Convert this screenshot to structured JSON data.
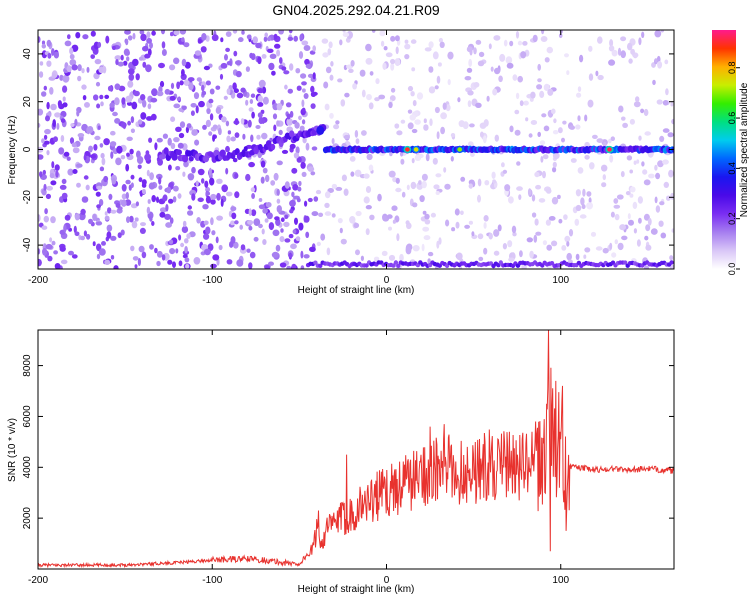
{
  "title": "GN04.2025.292.04.21.R09",
  "colors": {
    "snr_line": "#e8322e",
    "axis": "#000000",
    "colormap": [
      "#ffffff",
      "#d9c6f7",
      "#a67ef0",
      "#7a2ef2",
      "#4a0ae8",
      "#1a16f0",
      "#0066ff",
      "#00ccee",
      "#00e080",
      "#33ee00",
      "#c8ee00",
      "#ffb000",
      "#ff3300",
      "#ff1a8c"
    ]
  },
  "chart_data": [
    {
      "type": "heatmap",
      "name": "spectrogram",
      "xlabel": "Height of straight line (km)",
      "ylabel": "Frequency (Hz)",
      "xlim": [
        -200,
        165
      ],
      "ylim": [
        -50,
        50
      ],
      "xticks": [
        -200,
        -100,
        0,
        100
      ],
      "xtick_labels": [
        "-200",
        "-100",
        "0",
        "100"
      ],
      "yticks": [
        -40,
        -20,
        0,
        20,
        40
      ],
      "ytick_labels": [
        "-40",
        "-20",
        "0",
        "20",
        "40"
      ],
      "colorbar": {
        "label": "Normalized spectral amplitude",
        "range": [
          0,
          0.95
        ],
        "ticks": [
          0.0,
          0.2,
          0.4,
          0.6,
          0.8
        ],
        "tick_labels": [
          "0.0",
          "0.2",
          "0.4",
          "0.6",
          "0.8"
        ]
      },
      "features": [
        {
          "name": "pre-track",
          "x": [
            -125,
            -100,
            -80,
            -65,
            -55,
            -45,
            -38
          ],
          "y": [
            -2,
            -3,
            -1,
            2,
            5,
            7,
            8
          ]
        },
        {
          "name": "zero-frequency track",
          "x_range": [
            -35,
            165
          ],
          "y": 0
        },
        {
          "name": "low edge track",
          "x_range": [
            -45,
            165
          ],
          "y": -48
        },
        {
          "name": "high-amplitude peaks",
          "x": [
            12,
            17,
            42,
            128
          ],
          "y": [
            0,
            0,
            0,
            0
          ],
          "amplitude": [
            0.9,
            0.75,
            0.7,
            0.92
          ]
        }
      ]
    },
    {
      "type": "line",
      "name": "snr",
      "xlabel": "Height of straight line (km)",
      "ylabel": "SNR (10 * v/v)",
      "xlim": [
        -200,
        165
      ],
      "ylim": [
        0,
        9400
      ],
      "xticks": [
        -200,
        -100,
        0,
        100
      ],
      "xtick_labels": [
        "-200",
        "-100",
        "0",
        "100"
      ],
      "yticks": [
        2000,
        4000,
        6000,
        8000
      ],
      "ytick_labels": [
        "2000",
        "4000",
        "6000",
        "8000"
      ],
      "series": [
        {
          "name": "SNR",
          "x": [
            -200,
            -150,
            -120,
            -100,
            -90,
            -80,
            -70,
            -60,
            -50,
            -45,
            -42,
            -40,
            -37,
            -35,
            -30,
            -25,
            -20,
            -15,
            -10,
            -5,
            0,
            5,
            10,
            15,
            20,
            25,
            30,
            35,
            40,
            45,
            50,
            55,
            60,
            65,
            70,
            75,
            80,
            85,
            88,
            90,
            92,
            93,
            95,
            97,
            100,
            102,
            105,
            110,
            120,
            130,
            140,
            150,
            165
          ],
          "y": [
            150,
            160,
            250,
            350,
            380,
            400,
            350,
            250,
            200,
            600,
            800,
            1600,
            1000,
            1500,
            1800,
            2000,
            2200,
            2500,
            2700,
            2900,
            3000,
            3200,
            3400,
            3500,
            3700,
            3900,
            3800,
            4000,
            3700,
            3900,
            3900,
            4000,
            4100,
            4000,
            4100,
            4100,
            4000,
            4200,
            4000,
            4500,
            5000,
            7500,
            5500,
            4500,
            5000,
            4200,
            4000,
            4000,
            3900,
            3950,
            3900,
            3950,
            3850
          ],
          "spikes": [
            {
              "x": -23,
              "y": 4500
            },
            {
              "x": -39,
              "y": 2300
            },
            {
              "x": 25,
              "y": 5600
            },
            {
              "x": 33,
              "y": 5700
            },
            {
              "x": 92,
              "y": 6500
            },
            {
              "x": 93,
              "y": 9400
            },
            {
              "x": 94,
              "y": 700
            },
            {
              "x": 97,
              "y": 7400
            },
            {
              "x": 101,
              "y": 7200
            },
            {
              "x": 103,
              "y": 1500
            }
          ]
        }
      ]
    }
  ]
}
